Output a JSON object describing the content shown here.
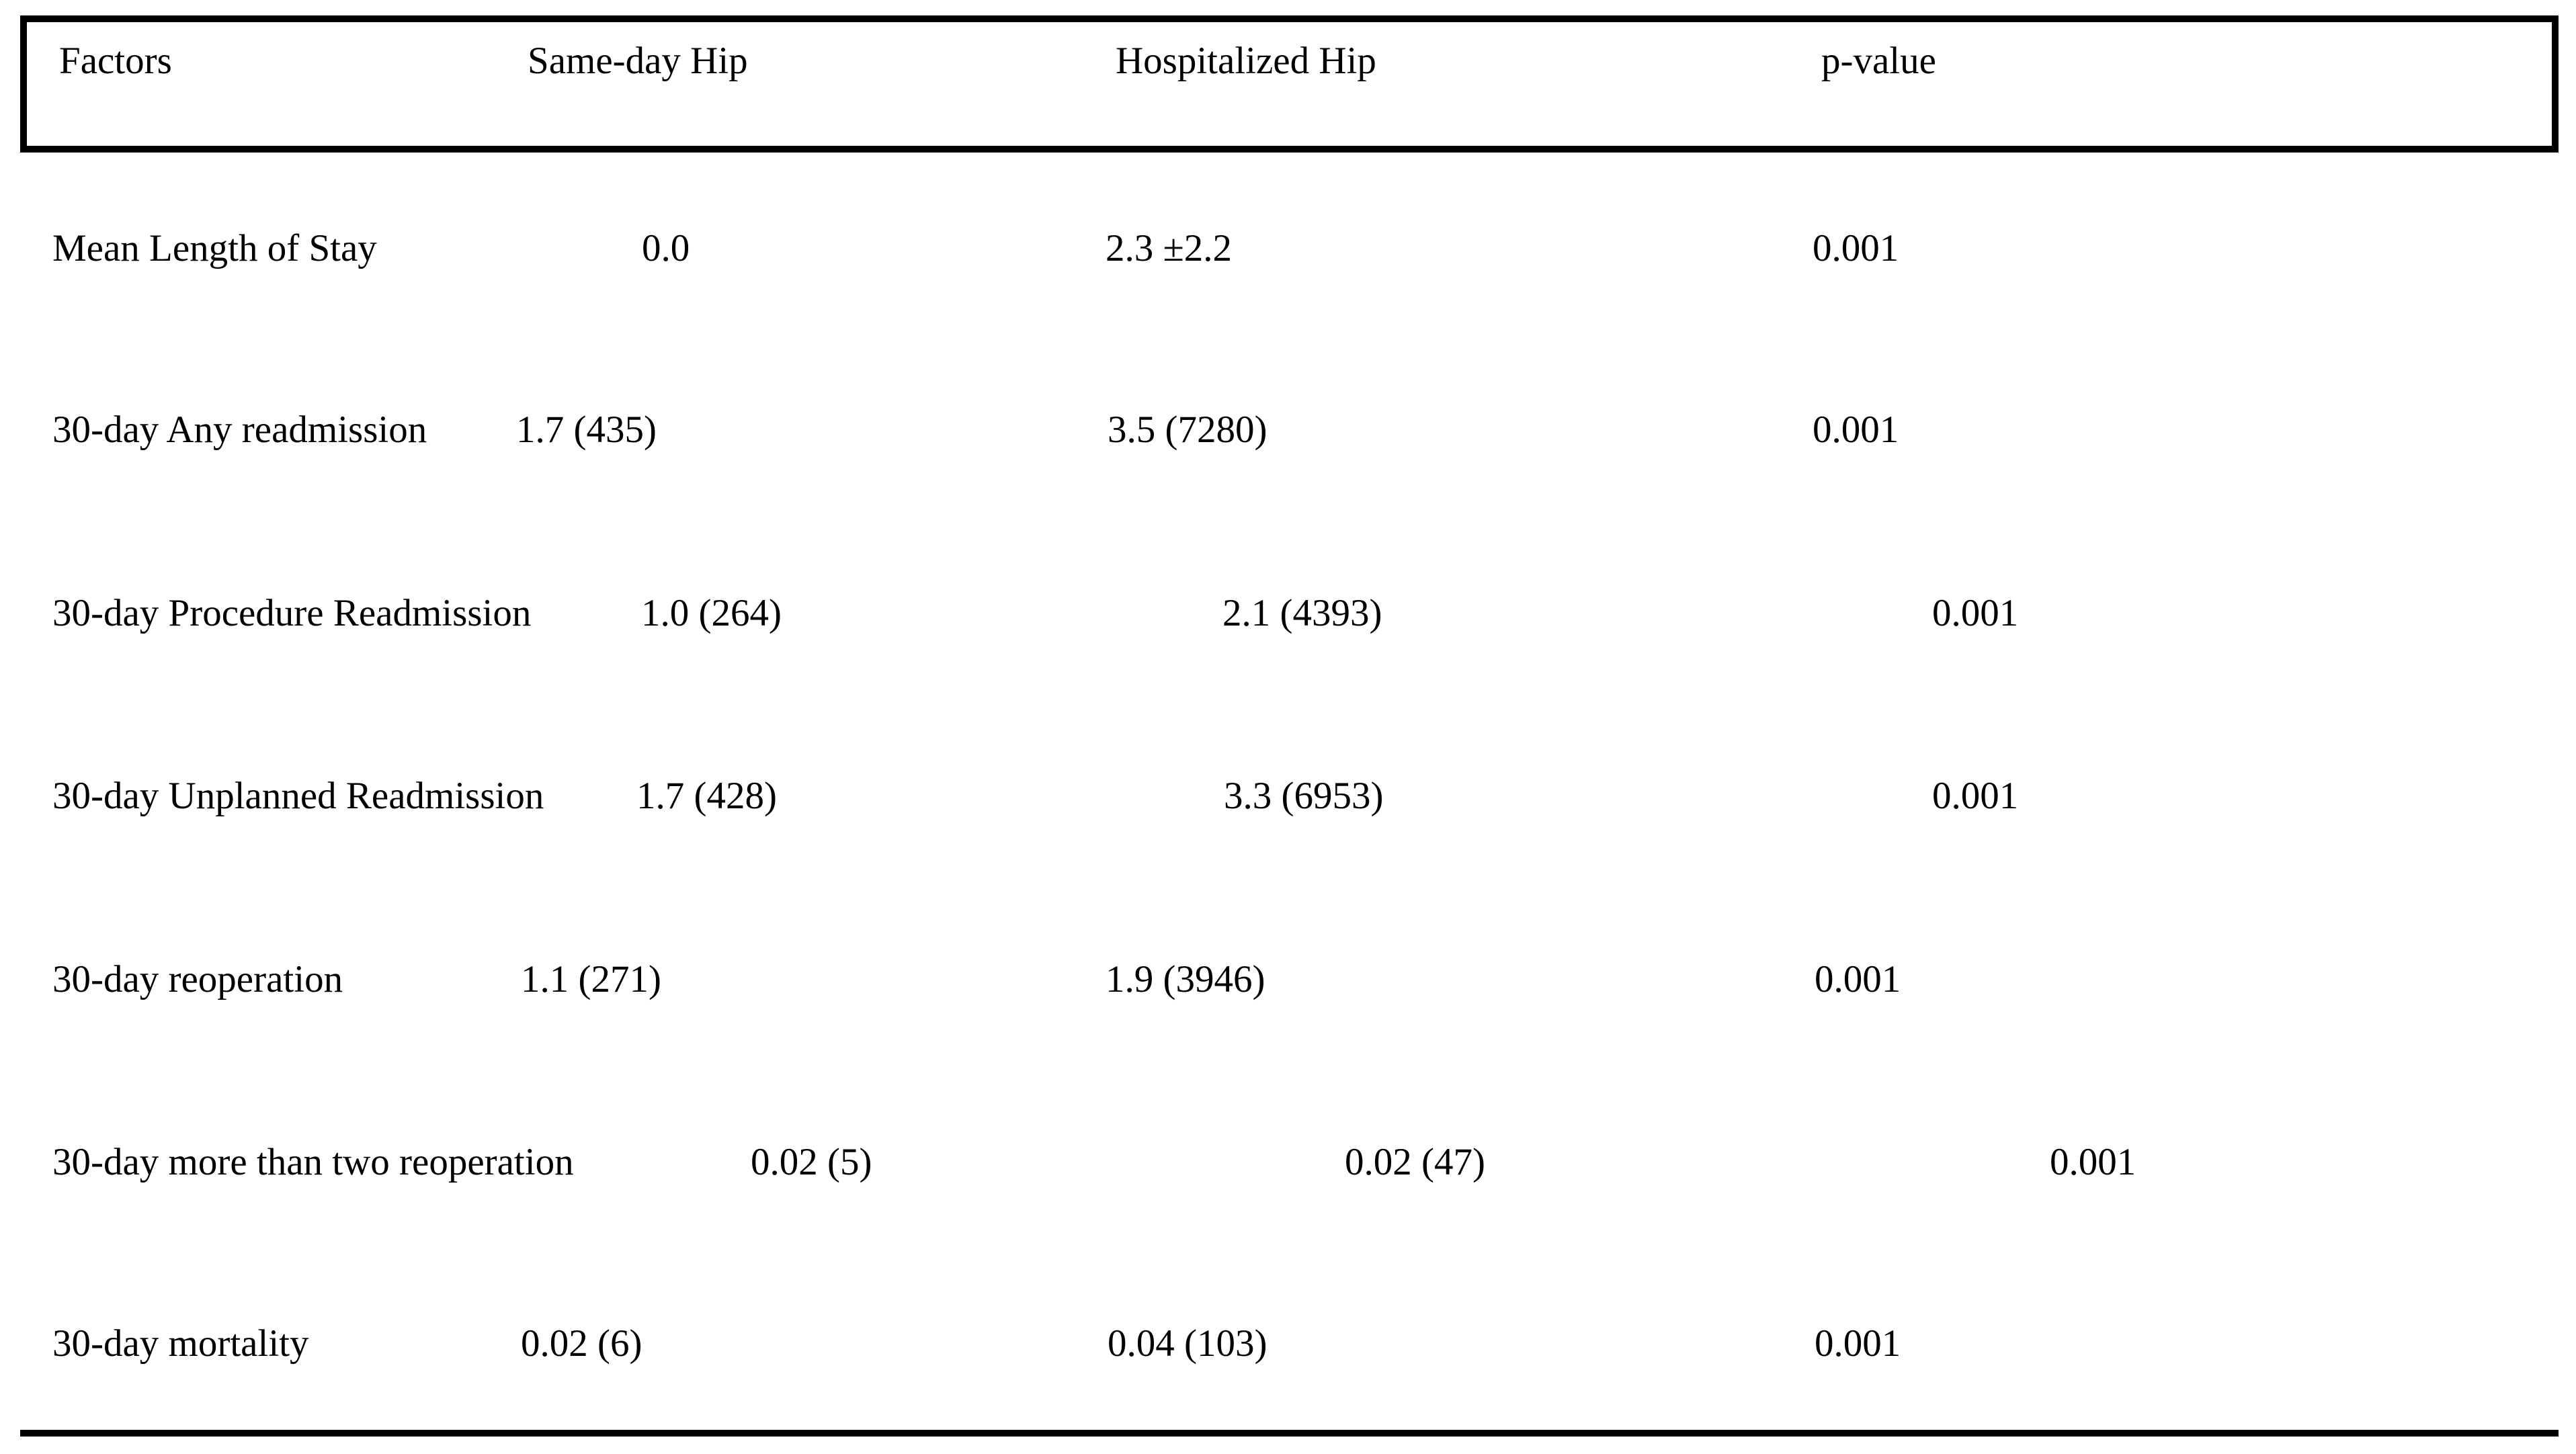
{
  "table": {
    "columns": [
      "Factors",
      "Same-day Hip",
      "Hospitalized Hip",
      "p-value"
    ],
    "rows": [
      {
        "factor": "Mean Length of Stay",
        "same_day": "0.0",
        "hospitalized": "2.3 ±2.2",
        "p_value": "0.001"
      },
      {
        "factor": "30-day Any readmission",
        "same_day": "1.7 (435)",
        "hospitalized": "3.5 (7280)",
        "p_value": "0.001"
      },
      {
        "factor": "30-day Procedure Readmission",
        "same_day": "1.0 (264)",
        "hospitalized": "2.1 (4393)",
        "p_value": "0.001"
      },
      {
        "factor": "30-day Unplanned Readmission",
        "same_day": "1.7 (428)",
        "hospitalized": "3.3 (6953)",
        "p_value": "0.001"
      },
      {
        "factor": "30-day reoperation",
        "same_day": "1.1 (271)",
        "hospitalized": "1.9 (3946)",
        "p_value": "0.001"
      },
      {
        "factor": "30-day more than two reoperation",
        "same_day": "0.02 (5)",
        "hospitalized": "0.02 (47)",
        "p_value": "0.001"
      },
      {
        "factor": "30-day mortality",
        "same_day": "0.02 (6)",
        "hospitalized": "0.04 (103)",
        "p_value": "0.001"
      }
    ],
    "colors": {
      "text": "#000000",
      "border": "#000000",
      "background": "#ffffff"
    }
  }
}
